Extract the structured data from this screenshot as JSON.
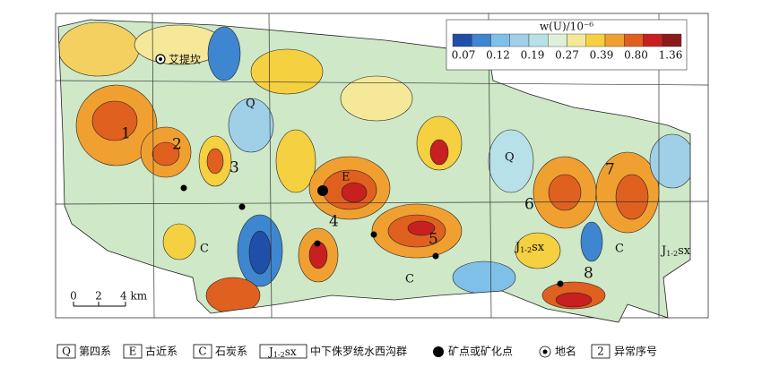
{
  "colorbar": {
    "title": "w(U)/10⁻⁶",
    "ticks": [
      "0.07",
      "0.12",
      "0.19",
      "0.27",
      "0.39",
      "0.80",
      "1.36"
    ]
  },
  "place_name": "艾提坎",
  "anomalies": [
    "1",
    "2",
    "3",
    "4",
    "5",
    "6",
    "7",
    "8"
  ],
  "formations": {
    "q1": "Q",
    "q2": "Q",
    "e": "E",
    "c1": "C",
    "c2": "C",
    "c3": "C",
    "j1": {
      "base": "J",
      "sub": "1-2",
      "suffix": "sx"
    },
    "j2": {
      "base": "J",
      "sub": "1-2",
      "suffix": "sx"
    }
  },
  "scale": [
    "0",
    "2",
    "4 km"
  ],
  "legend": [
    {
      "symbol": "Q",
      "label": "第四系"
    },
    {
      "symbol": "E",
      "label": "古近系"
    },
    {
      "symbol": "C",
      "label": "石炭系"
    },
    {
      "symbol": {
        "base": "J",
        "sub": "1-2",
        "suffix": "sx"
      },
      "label": "中下侏罗统水西沟群"
    },
    {
      "label": "矿点或矿化点"
    },
    {
      "label": "地名"
    },
    {
      "symbol": "2",
      "label": "异常序号"
    }
  ]
}
